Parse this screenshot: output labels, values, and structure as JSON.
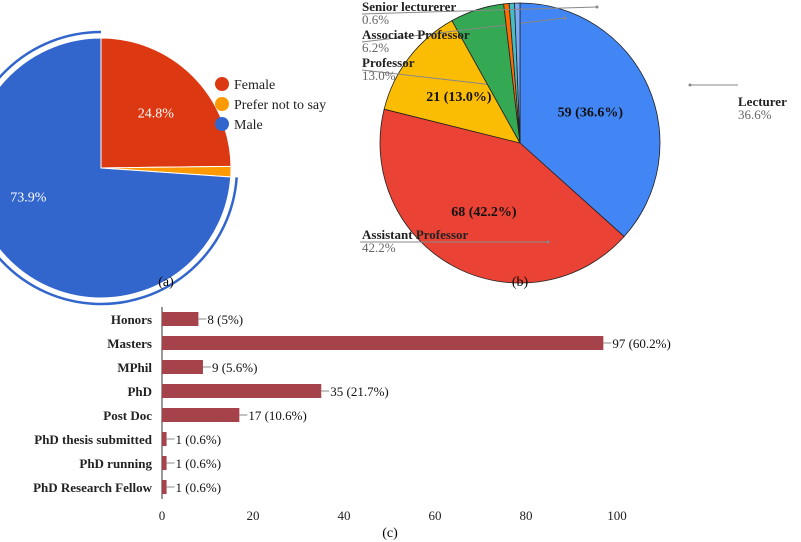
{
  "chart_data": [
    {
      "type": "pie",
      "caption": "(a)",
      "slices": [
        {
          "name": "Female",
          "value": 24.8,
          "label": "24.8%",
          "color": "#dc3912"
        },
        {
          "name": "Prefer not to say",
          "value": 1.3,
          "label": "",
          "color": "#ff9900"
        },
        {
          "name": "Male",
          "value": 73.9,
          "label": "73.9%",
          "color": "#3366cc"
        }
      ],
      "legend": "right"
    },
    {
      "type": "pie",
      "caption": "(b)",
      "slices": [
        {
          "name": "Lecturer",
          "value": 59,
          "label": "59 (36.6%)",
          "pct": "36.6%",
          "color": "#4285f4"
        },
        {
          "name": "Assistant Professor",
          "value": 68,
          "label": "68 (42.2%)",
          "pct": "42.2%",
          "color": "#ea4335"
        },
        {
          "name": "Professor",
          "value": 21,
          "label": "21 (13.0%)",
          "pct": "13.0%",
          "color": "#fbbc04"
        },
        {
          "name": "Associate Professor",
          "value": 10,
          "label": "",
          "pct": "6.2%",
          "color": "#34a853"
        },
        {
          "name": "",
          "value": 1,
          "label": "",
          "pct": "",
          "color": "#ff6d01"
        },
        {
          "name": "",
          "value": 1,
          "label": "",
          "pct": "",
          "color": "#46bdc6"
        },
        {
          "name": "Senior lecturerer",
          "value": 1,
          "label": "",
          "pct": "0.6%",
          "color": "#7baaf7"
        }
      ]
    },
    {
      "type": "bar",
      "orientation": "horizontal",
      "caption": "(c)",
      "categories": [
        "Honors",
        "Masters",
        "MPhil",
        "PhD",
        "Post Doc",
        "PhD thesis submitted",
        "PhD running",
        "PhD Research Fellow"
      ],
      "values": [
        8,
        97,
        9,
        35,
        17,
        1,
        1,
        1
      ],
      "labels": [
        "8 (5%)",
        "97 (60.2%)",
        "9 (5.6%)",
        "35 (21.7%)",
        "17 (10.6%)",
        "1 (0.6%)",
        "1 (0.6%)",
        "1 (0.6%)"
      ],
      "xlim": [
        0,
        100
      ],
      "xticks": [
        "0",
        "20",
        "40",
        "60",
        "80",
        "100"
      ],
      "color": "#a5424a",
      "grid": false
    }
  ]
}
